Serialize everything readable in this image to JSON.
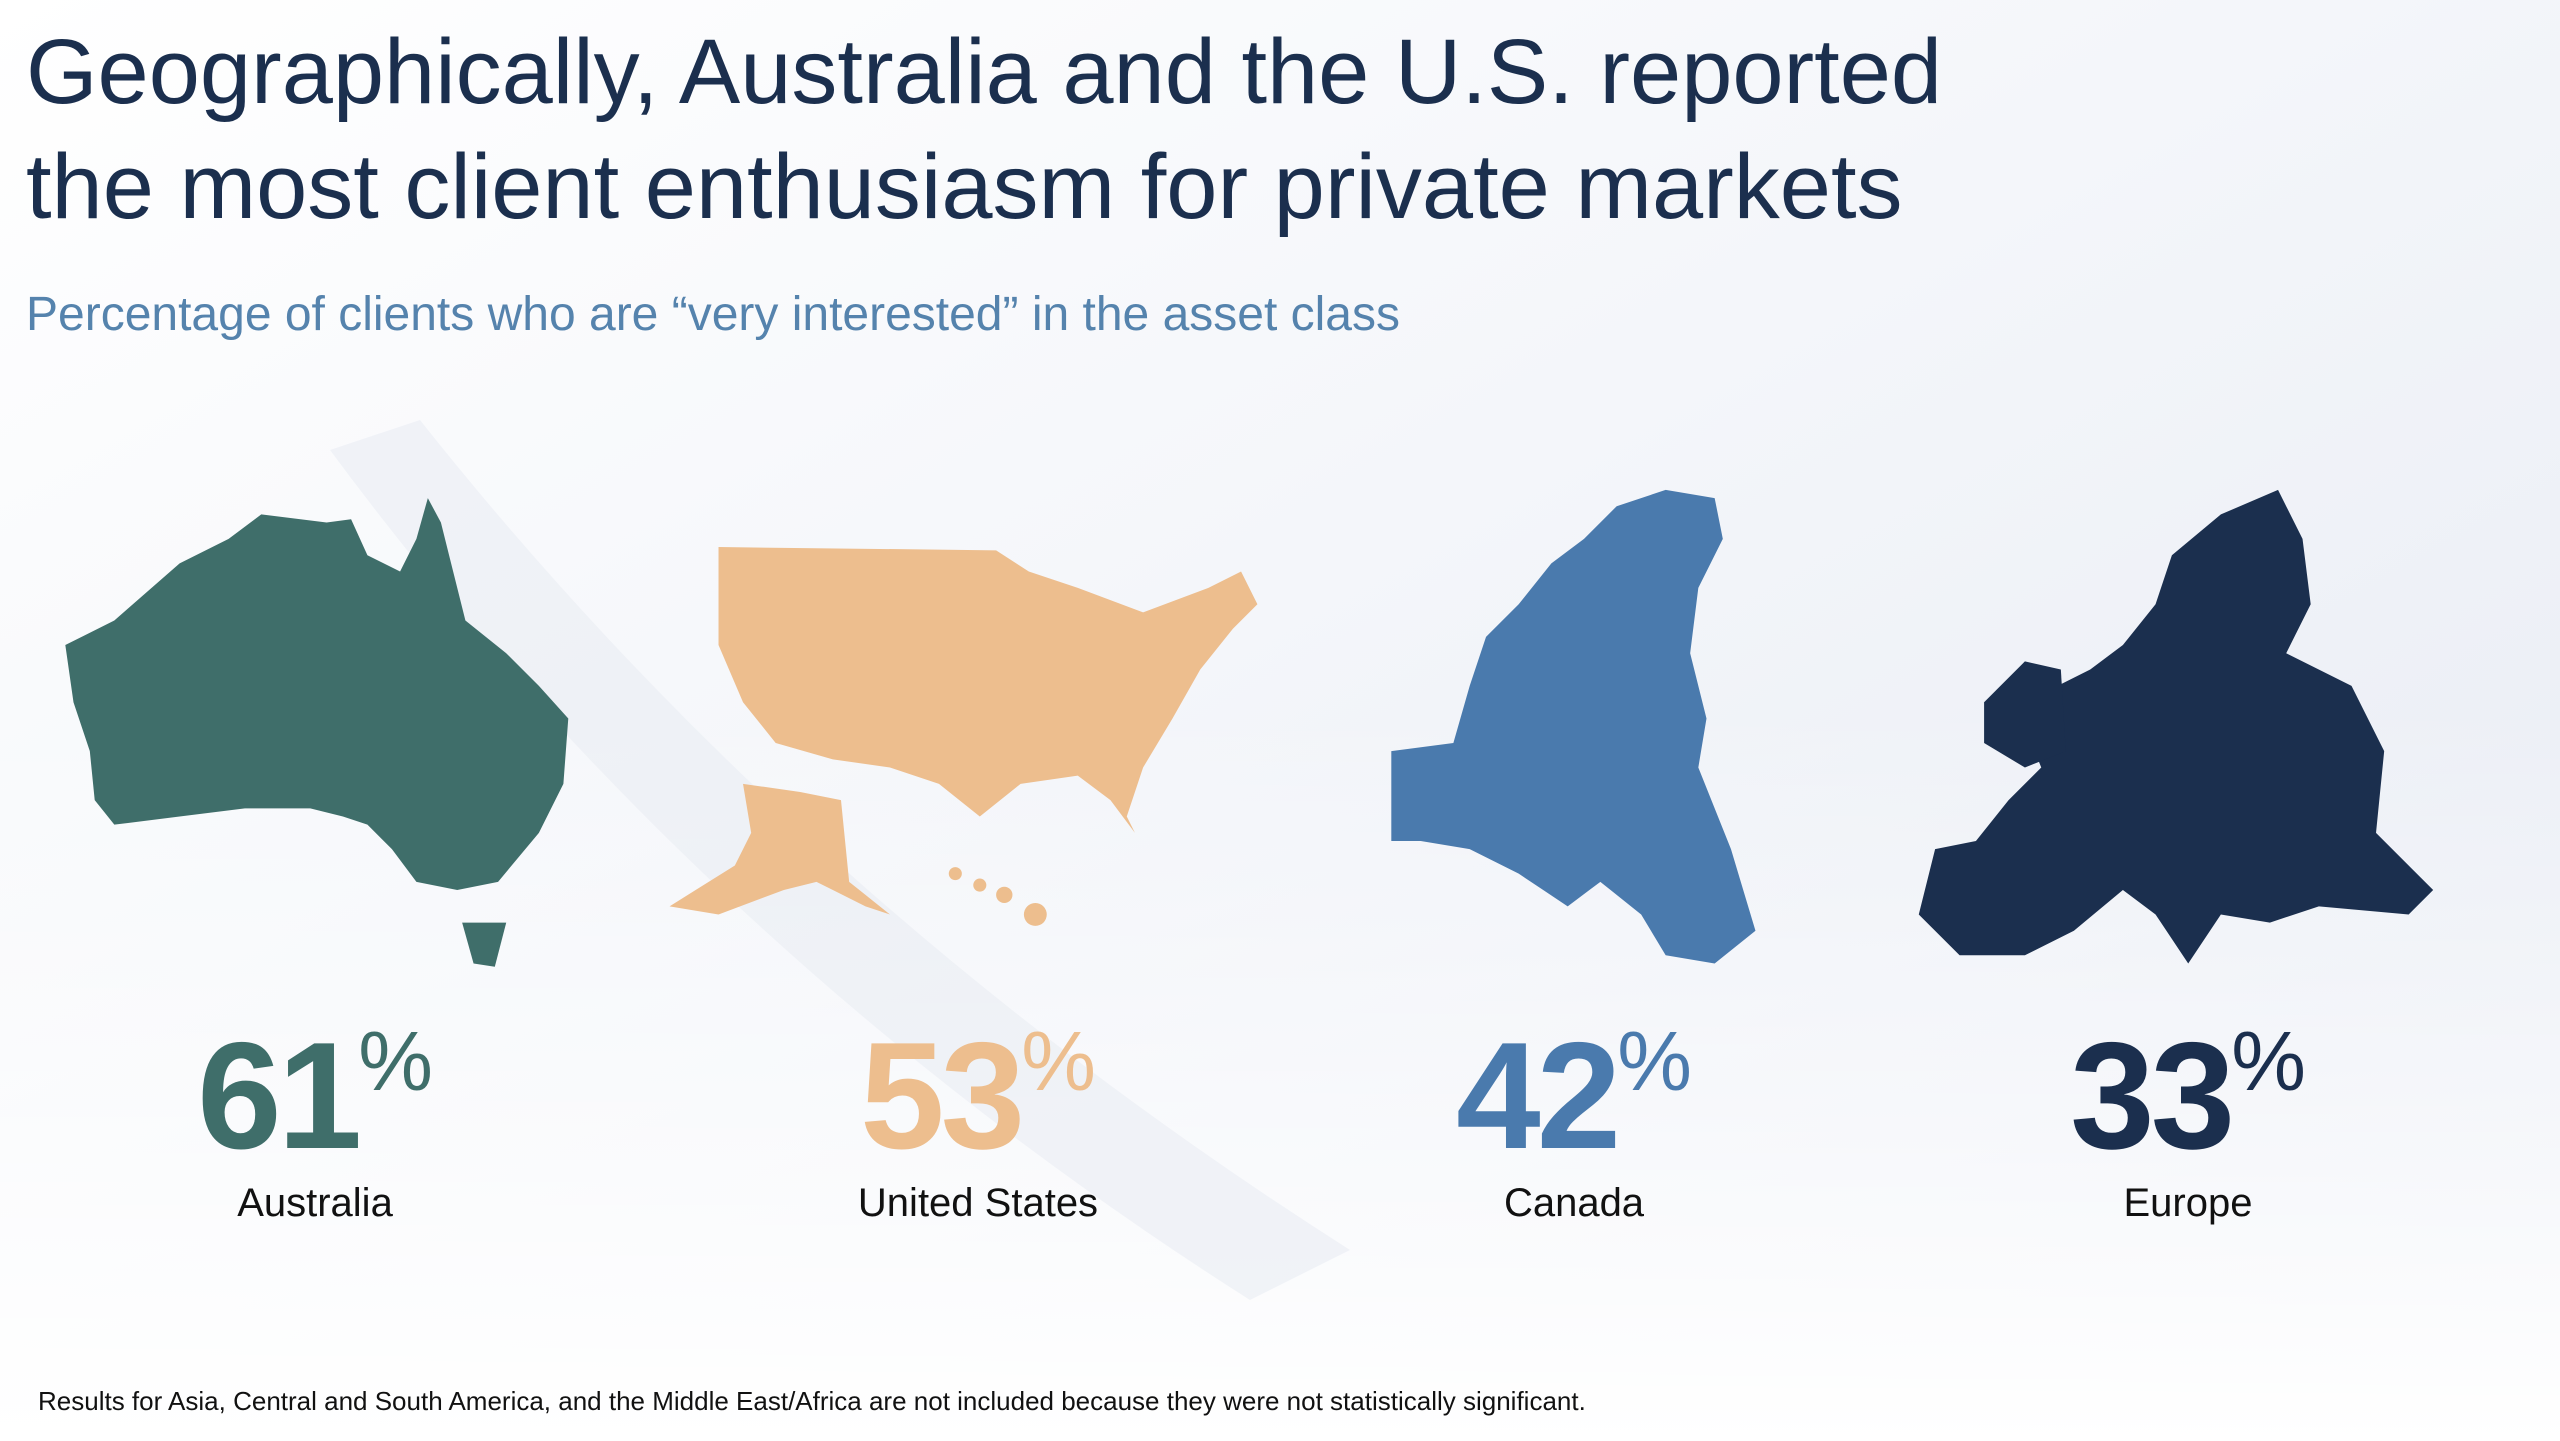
{
  "header": {
    "title_lines": [
      "Geographically, Australia and the U.S. reported",
      "the most client enthusiasm for private markets"
    ],
    "subtitle": "Percentage of clients who are “very interested” in the asset class"
  },
  "regions": [
    {
      "value": 61,
      "unit": "%",
      "name": "Australia",
      "color": "#3f6e6a"
    },
    {
      "value": 53,
      "unit": "%",
      "name": "United States",
      "color": "#edbe8e"
    },
    {
      "value": 42,
      "unit": "%",
      "name": "Canada",
      "color": "#4a7aad"
    },
    {
      "value": 33,
      "unit": "%",
      "name": "Europe",
      "color": "#1b2f4e"
    }
  ],
  "footnote": "Results for Asia, Central and South America, and the Middle East/Africa are not included because they were not statistically significant."
}
